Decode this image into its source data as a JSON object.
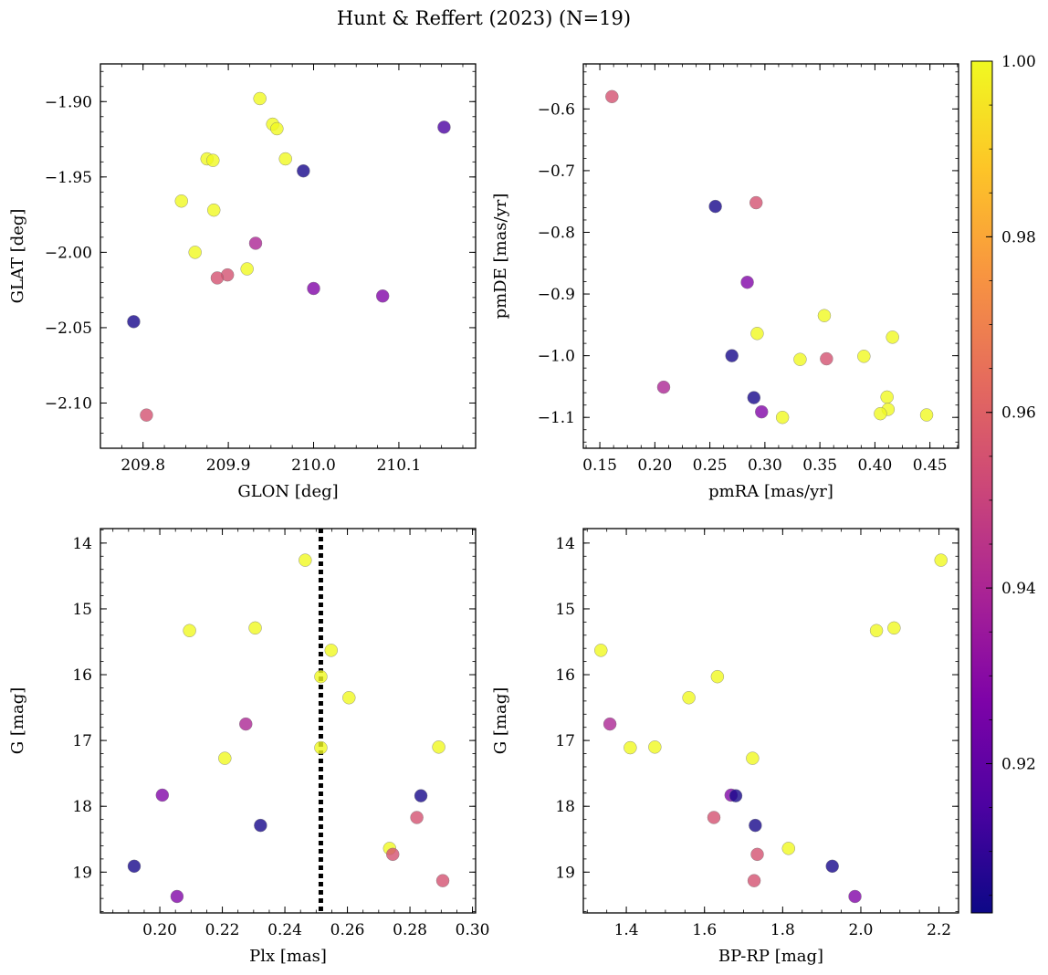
{
  "figure": {
    "title": "Hunt & Reffert (2023) (N=19)"
  },
  "colorbar": {
    "colormap": "plasma",
    "range": [
      0.903,
      1.0
    ],
    "ticks": [
      0.92,
      0.94,
      0.96,
      0.98,
      1.0
    ],
    "tick_labels": [
      "0.92",
      "0.94",
      "0.96",
      "0.98",
      "1.00"
    ]
  },
  "chart_data": [
    {
      "type": "scatter",
      "panel": "top-left",
      "xlabel": "GLON [deg]",
      "ylabel": "GLAT [deg]",
      "xlim": [
        209.75,
        210.19
      ],
      "ylim": [
        -2.13,
        -1.875
      ],
      "xticks": [
        209.8,
        209.9,
        210.0,
        210.1
      ],
      "xtick_labels": [
        "209.8",
        "209.9",
        "210.0",
        "210.1"
      ],
      "yticks": [
        -1.9,
        -1.95,
        -2.0,
        -2.05,
        -2.1
      ],
      "ytick_labels": [
        "−1.90",
        "−1.95",
        "−2.00",
        "−2.05",
        "−2.10"
      ],
      "y_inverted": false,
      "points": [
        {
          "x": 209.937,
          "y": -1.898,
          "c": 1.0
        },
        {
          "x": 209.952,
          "y": -1.915,
          "c": 1.0
        },
        {
          "x": 209.957,
          "y": -1.918,
          "c": 1.0
        },
        {
          "x": 210.153,
          "y": -1.917,
          "c": 0.915
        },
        {
          "x": 209.875,
          "y": -1.938,
          "c": 1.0
        },
        {
          "x": 209.882,
          "y": -1.939,
          "c": 1.0
        },
        {
          "x": 209.967,
          "y": -1.938,
          "c": 1.0
        },
        {
          "x": 209.988,
          "y": -1.946,
          "c": 0.905
        },
        {
          "x": 209.845,
          "y": -1.966,
          "c": 1.0
        },
        {
          "x": 209.883,
          "y": -1.972,
          "c": 1.0
        },
        {
          "x": 209.932,
          "y": -1.994,
          "c": 0.94
        },
        {
          "x": 209.861,
          "y": -2.0,
          "c": 1.0
        },
        {
          "x": 209.922,
          "y": -2.011,
          "c": 1.0
        },
        {
          "x": 209.899,
          "y": -2.015,
          "c": 0.955
        },
        {
          "x": 209.887,
          "y": -2.017,
          "c": 0.955
        },
        {
          "x": 210.0,
          "y": -2.024,
          "c": 0.928
        },
        {
          "x": 210.081,
          "y": -2.029,
          "c": 0.928
        },
        {
          "x": 209.789,
          "y": -2.046,
          "c": 0.905
        },
        {
          "x": 209.804,
          "y": -2.108,
          "c": 0.955
        }
      ]
    },
    {
      "type": "scatter",
      "panel": "top-right",
      "xlabel": "pmRA [mas/yr]",
      "ylabel": "pmDE [mas/yr]",
      "xlim": [
        0.135,
        0.476
      ],
      "ylim": [
        -1.15,
        -0.527
      ],
      "xticks": [
        0.15,
        0.2,
        0.25,
        0.3,
        0.35,
        0.4,
        0.45
      ],
      "xtick_labels": [
        "0.15",
        "0.20",
        "0.25",
        "0.30",
        "0.35",
        "0.40",
        "0.45"
      ],
      "yticks": [
        -0.6,
        -0.7,
        -0.8,
        -0.9,
        -1.0,
        -1.1
      ],
      "ytick_labels": [
        "−0.6",
        "−0.7",
        "−0.8",
        "−0.9",
        "−1.0",
        "−1.1"
      ],
      "y_inverted": false,
      "points": [
        {
          "x": 0.161,
          "y": -0.58,
          "c": 0.955
        },
        {
          "x": 0.255,
          "y": -0.758,
          "c": 0.905
        },
        {
          "x": 0.292,
          "y": -0.752,
          "c": 0.955
        },
        {
          "x": 0.284,
          "y": -0.881,
          "c": 0.928
        },
        {
          "x": 0.354,
          "y": -0.935,
          "c": 1.0
        },
        {
          "x": 0.293,
          "y": -0.964,
          "c": 1.0
        },
        {
          "x": 0.416,
          "y": -0.97,
          "c": 1.0
        },
        {
          "x": 0.27,
          "y": -1.0,
          "c": 0.905
        },
        {
          "x": 0.39,
          "y": -1.001,
          "c": 1.0
        },
        {
          "x": 0.332,
          "y": -1.006,
          "c": 1.0
        },
        {
          "x": 0.356,
          "y": -1.005,
          "c": 0.955
        },
        {
          "x": 0.208,
          "y": -1.051,
          "c": 0.94
        },
        {
          "x": 0.29,
          "y": -1.068,
          "c": 0.905
        },
        {
          "x": 0.411,
          "y": -1.067,
          "c": 1.0
        },
        {
          "x": 0.412,
          "y": -1.087,
          "c": 1.0
        },
        {
          "x": 0.297,
          "y": -1.091,
          "c": 0.928
        },
        {
          "x": 0.405,
          "y": -1.094,
          "c": 1.0
        },
        {
          "x": 0.447,
          "y": -1.096,
          "c": 1.0
        },
        {
          "x": 0.316,
          "y": -1.1,
          "c": 1.0
        }
      ]
    },
    {
      "type": "scatter",
      "panel": "bottom-left",
      "xlabel": "Plx [mas]",
      "ylabel": "G [mag]",
      "xlim": [
        0.181,
        0.301
      ],
      "ylim": [
        13.78,
        19.62
      ],
      "xticks": [
        0.2,
        0.22,
        0.24,
        0.26,
        0.28,
        0.3
      ],
      "xtick_labels": [
        "0.20",
        "0.22",
        "0.24",
        "0.26",
        "0.28",
        "0.30"
      ],
      "yticks": [
        14,
        15,
        16,
        17,
        18,
        19
      ],
      "ytick_labels": [
        "14",
        "15",
        "16",
        "17",
        "18",
        "19"
      ],
      "y_inverted": true,
      "vline": 0.2515,
      "points": [
        {
          "x": 0.2465,
          "y": 14.26,
          "c": 1.0
        },
        {
          "x": 0.2095,
          "y": 15.33,
          "c": 1.0
        },
        {
          "x": 0.2305,
          "y": 15.29,
          "c": 1.0
        },
        {
          "x": 0.2548,
          "y": 15.63,
          "c": 1.0
        },
        {
          "x": 0.2515,
          "y": 16.03,
          "c": 1.0
        },
        {
          "x": 0.2605,
          "y": 16.35,
          "c": 1.0
        },
        {
          "x": 0.2275,
          "y": 16.75,
          "c": 0.94
        },
        {
          "x": 0.2515,
          "y": 17.11,
          "c": 1.0
        },
        {
          "x": 0.2892,
          "y": 17.1,
          "c": 1.0
        },
        {
          "x": 0.2208,
          "y": 17.27,
          "c": 1.0
        },
        {
          "x": 0.2008,
          "y": 17.83,
          "c": 0.928
        },
        {
          "x": 0.2835,
          "y": 17.84,
          "c": 0.905
        },
        {
          "x": 0.2822,
          "y": 18.17,
          "c": 0.955
        },
        {
          "x": 0.2322,
          "y": 18.29,
          "c": 0.905
        },
        {
          "x": 0.2735,
          "y": 18.64,
          "c": 1.0
        },
        {
          "x": 0.2745,
          "y": 18.73,
          "c": 0.955
        },
        {
          "x": 0.1918,
          "y": 18.91,
          "c": 0.905
        },
        {
          "x": 0.2905,
          "y": 19.13,
          "c": 0.955
        },
        {
          "x": 0.2055,
          "y": 19.37,
          "c": 0.928
        }
      ]
    },
    {
      "type": "scatter",
      "panel": "bottom-right",
      "xlabel": "BP-RP [mag]",
      "ylabel": "G [mag]",
      "xlim": [
        1.29,
        2.25
      ],
      "ylim": [
        13.78,
        19.62
      ],
      "xticks": [
        1.4,
        1.6,
        1.8,
        2.0,
        2.2
      ],
      "xtick_labels": [
        "1.4",
        "1.6",
        "1.8",
        "2.0",
        "2.2"
      ],
      "yticks": [
        14,
        15,
        16,
        17,
        18,
        19
      ],
      "ytick_labels": [
        "14",
        "15",
        "16",
        "17",
        "18",
        "19"
      ],
      "y_inverted": true,
      "points": [
        {
          "x": 2.205,
          "y": 14.26,
          "c": 1.0
        },
        {
          "x": 2.04,
          "y": 15.33,
          "c": 1.0
        },
        {
          "x": 2.085,
          "y": 15.29,
          "c": 1.0
        },
        {
          "x": 1.335,
          "y": 15.63,
          "c": 1.0
        },
        {
          "x": 1.633,
          "y": 16.03,
          "c": 1.0
        },
        {
          "x": 1.56,
          "y": 16.35,
          "c": 1.0
        },
        {
          "x": 1.358,
          "y": 16.75,
          "c": 0.94
        },
        {
          "x": 1.41,
          "y": 17.11,
          "c": 1.0
        },
        {
          "x": 1.473,
          "y": 17.1,
          "c": 1.0
        },
        {
          "x": 1.723,
          "y": 17.27,
          "c": 1.0
        },
        {
          "x": 1.668,
          "y": 17.83,
          "c": 0.928
        },
        {
          "x": 1.68,
          "y": 17.84,
          "c": 0.905
        },
        {
          "x": 1.624,
          "y": 18.17,
          "c": 0.955
        },
        {
          "x": 1.73,
          "y": 18.29,
          "c": 0.905
        },
        {
          "x": 1.815,
          "y": 18.64,
          "c": 1.0
        },
        {
          "x": 1.735,
          "y": 18.73,
          "c": 0.955
        },
        {
          "x": 1.927,
          "y": 18.91,
          "c": 0.905
        },
        {
          "x": 1.727,
          "y": 19.13,
          "c": 0.955
        },
        {
          "x": 1.985,
          "y": 19.37,
          "c": 0.928
        }
      ]
    }
  ]
}
